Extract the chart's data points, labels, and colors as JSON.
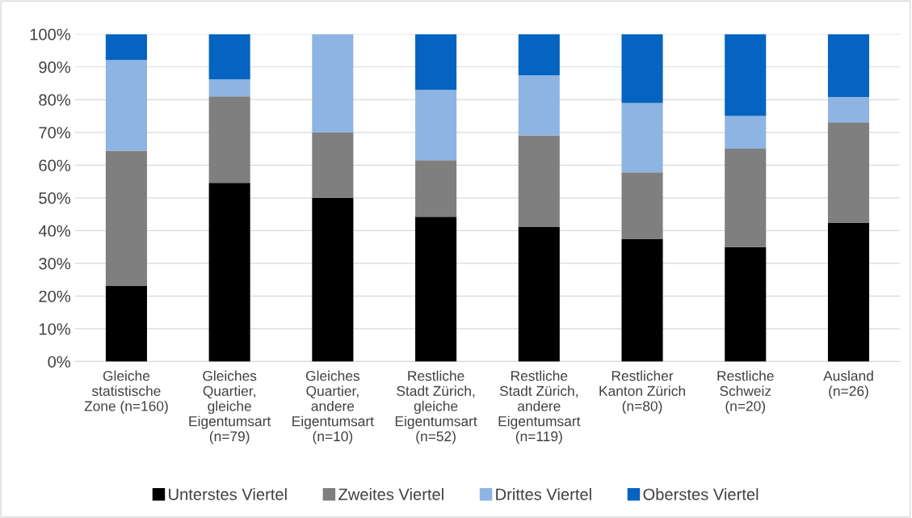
{
  "chart_data": {
    "type": "bar",
    "stacked": true,
    "categories": [
      "Gleiche\nstatistische\nZone (n=160)",
      "Gleiches\nQuartier,\ngleiche\nEigentumsart\n(n=79)",
      "Gleiches\nQuartier,\nandere\nEigentumsart\n(n=10)",
      "Restliche\nStadt Zürich,\ngleiche\nEigentumsart\n(n=52)",
      "Restliche\nStadt Zürich,\nandere\nEigentumsart\n(n=119)",
      "Restlicher\nKanton Zürich\n(n=80)",
      "Restliche\nSchweiz\n(n=20)",
      "Ausland\n(n=26)"
    ],
    "series": [
      {
        "name": "Unterstes Viertel",
        "color": "#000000",
        "values": [
          23.2,
          54.6,
          50,
          44.2,
          41.2,
          37.5,
          35,
          42.3
        ]
      },
      {
        "name": "Zweites Viertel",
        "color": "#7f7f7f",
        "values": [
          41.2,
          26.4,
          20,
          17.3,
          27.9,
          20.3,
          30,
          30.8
        ]
      },
      {
        "name": "Drittes Viertel",
        "color": "#8eb4e3",
        "values": [
          27.7,
          5.2,
          30,
          21.5,
          18.3,
          21.2,
          10,
          7.7
        ]
      },
      {
        "name": "Oberstes Viertel",
        "color": "#0563c1",
        "values": [
          7.9,
          13.8,
          0,
          17.0,
          12.6,
          21.0,
          25,
          19.2
        ]
      }
    ],
    "ylim": [
      0,
      100
    ],
    "yticks": [
      {
        "value": 0,
        "label": "0%"
      },
      {
        "value": 10,
        "label": "10%"
      },
      {
        "value": 20,
        "label": "20%"
      },
      {
        "value": 30,
        "label": "30%"
      },
      {
        "value": 40,
        "label": "40%"
      },
      {
        "value": 50,
        "label": "50%"
      },
      {
        "value": 60,
        "label": "60%"
      },
      {
        "value": 70,
        "label": "70%"
      },
      {
        "value": 80,
        "label": "80%"
      },
      {
        "value": 90,
        "label": "90%"
      },
      {
        "value": 100,
        "label": "100%"
      }
    ],
    "grid": "y",
    "legend": "bottom"
  }
}
